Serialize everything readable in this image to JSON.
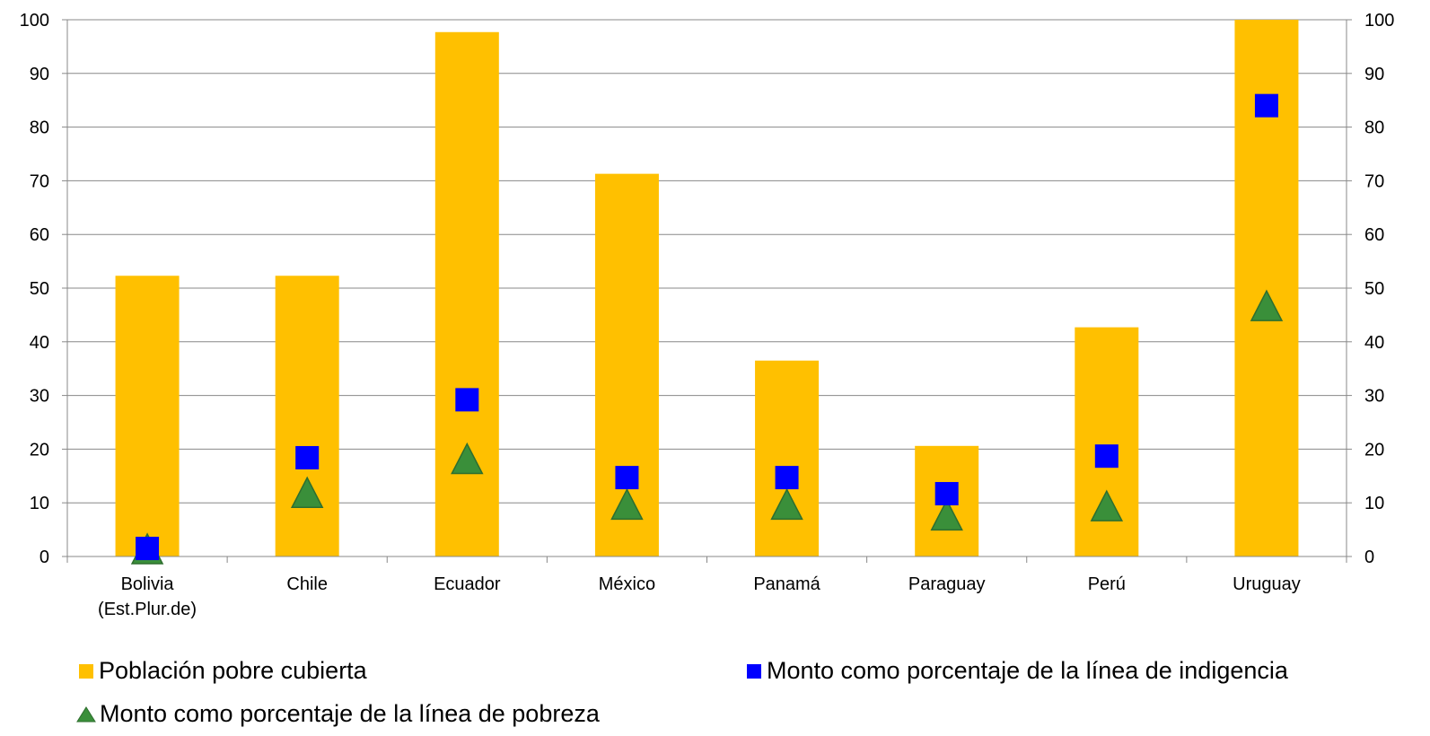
{
  "chart_data": {
    "type": "bar",
    "categories": [
      [
        "Bolivia",
        "(Est.Plur.de)"
      ],
      [
        "Chile"
      ],
      [
        "Ecuador"
      ],
      [
        "México"
      ],
      [
        "Panamá"
      ],
      [
        "Paraguay"
      ],
      [
        "Perú"
      ],
      [
        "Uruguay"
      ]
    ],
    "series": [
      {
        "name": "Población pobre cubierta",
        "kind": "bar",
        "color": "#FFC000",
        "values": [
          52.3,
          52.3,
          97.7,
          71.3,
          36.5,
          20.6,
          42.7,
          100
        ]
      },
      {
        "name": "Monto como porcentaje de la línea de indigencia",
        "kind": "square-marker",
        "color": "#0000FF",
        "values": [
          1.5,
          18.4,
          29.2,
          14.7,
          14.7,
          11.7,
          18.7,
          84.0
        ]
      },
      {
        "name": "Monto como porcentaje de la línea de pobreza",
        "kind": "triangle-marker",
        "color": "#3A8F3A",
        "values": [
          1.0,
          11.5,
          17.8,
          9.3,
          9.3,
          7.3,
          9.0,
          46.3
        ]
      }
    ],
    "ylim": [
      0,
      100
    ],
    "yticks": [
      0,
      10,
      20,
      30,
      40,
      50,
      60,
      70,
      80,
      90,
      100
    ],
    "secondary_ylim": [
      0,
      100
    ],
    "grid": true,
    "legend_position": "bottom"
  }
}
